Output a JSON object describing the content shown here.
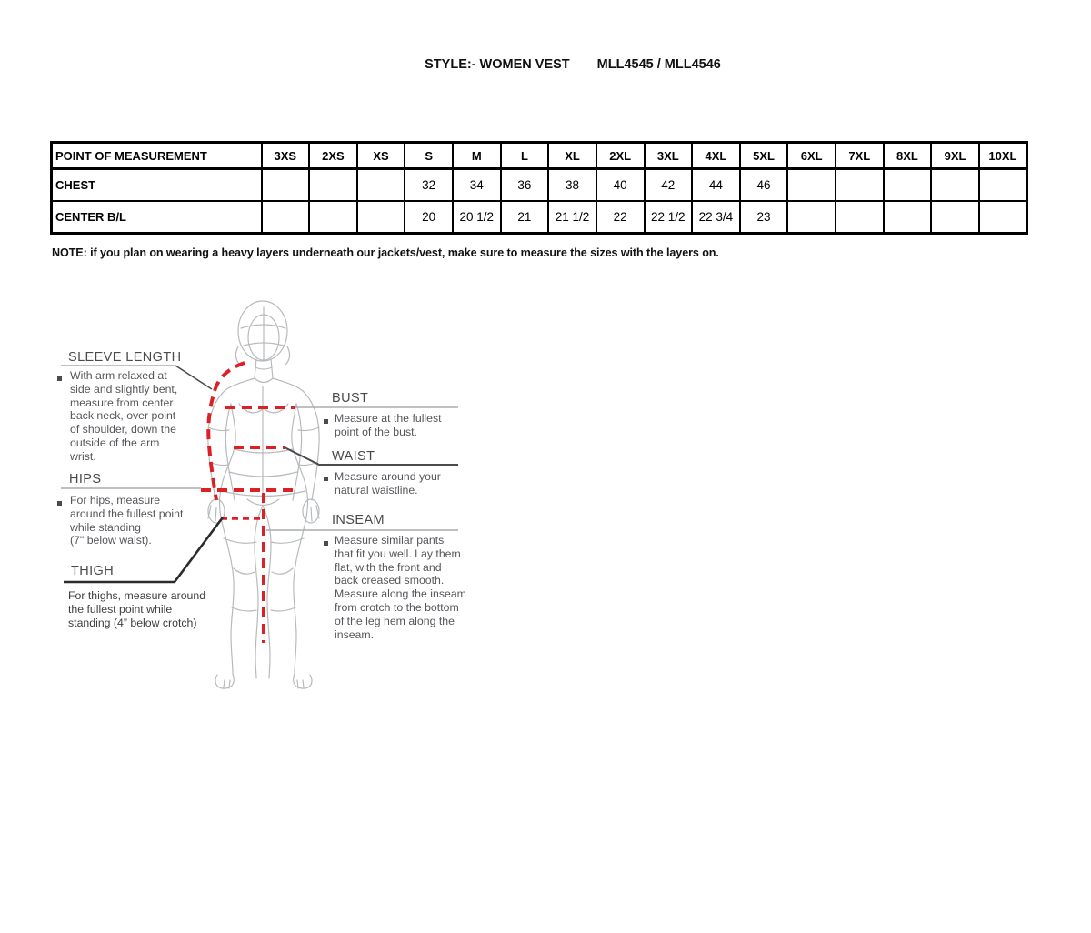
{
  "title": {
    "style_label": "STYLE:- WOMEN VEST",
    "model_numbers": "MLL4545 / MLL4546"
  },
  "table": {
    "corner_label": "POINT OF MEASUREMENT",
    "columns": [
      "3XS",
      "2XS",
      "XS",
      "S",
      "M",
      "L",
      "XL",
      "2XL",
      "3XL",
      "4XL",
      "5XL",
      "6XL",
      "7XL",
      "8XL",
      "9XL",
      "10XL"
    ],
    "rows": [
      {
        "label": "CHEST",
        "values": [
          "",
          "",
          "",
          "32",
          "34",
          "36",
          "38",
          "40",
          "42",
          "44",
          "46",
          "",
          "",
          "",
          "",
          ""
        ]
      },
      {
        "label": "CENTER B/L",
        "values": [
          "",
          "",
          "",
          "20",
          "20 1/2",
          "21",
          "21 1/2",
          "22",
          "22 1/2",
          "22 3/4",
          "23",
          "",
          "",
          "",
          "",
          ""
        ]
      }
    ]
  },
  "note": "NOTE: if you plan on wearing a heavy layers underneath our jackets/vest, make sure to measure the sizes with the layers on.",
  "diagram": {
    "colors": {
      "measure_line": "#dd1f26",
      "figure_outline": "#b7babd",
      "heading_text": "#4a4a4d",
      "body_text": "#55565a",
      "pointer_light": "#a9abad",
      "pointer_dark": "#4b4b4d",
      "pointer_black": "#2b2b2d"
    },
    "sections": {
      "sleeve_length": {
        "heading": "SLEEVE LENGTH",
        "description": "With arm relaxed at\nside and slightly bent,\nmeasure from center\nback neck, over point\nof shoulder, down the\noutside of the arm\nwrist."
      },
      "hips": {
        "heading": "HIPS",
        "description": "For hips, measure\naround the fullest point\nwhile standing\n(7\" below waist)."
      },
      "thigh": {
        "heading": "THIGH",
        "description": "For thighs, measure around\nthe fullest point while\nstanding (4” below crotch)"
      },
      "bust": {
        "heading": "BUST",
        "description": "Measure at the fullest\npoint of the bust."
      },
      "waist": {
        "heading": "WAIST",
        "description": "Measure around your\nnatural waistline."
      },
      "inseam": {
        "heading": "INSEAM",
        "description": "Measure similar pants\nthat fit you well. Lay them\nflat, with the front and\nback creased smooth.\nMeasure along the inseam\nfrom crotch to the bottom\nof the leg hem along the\ninseam."
      }
    }
  }
}
